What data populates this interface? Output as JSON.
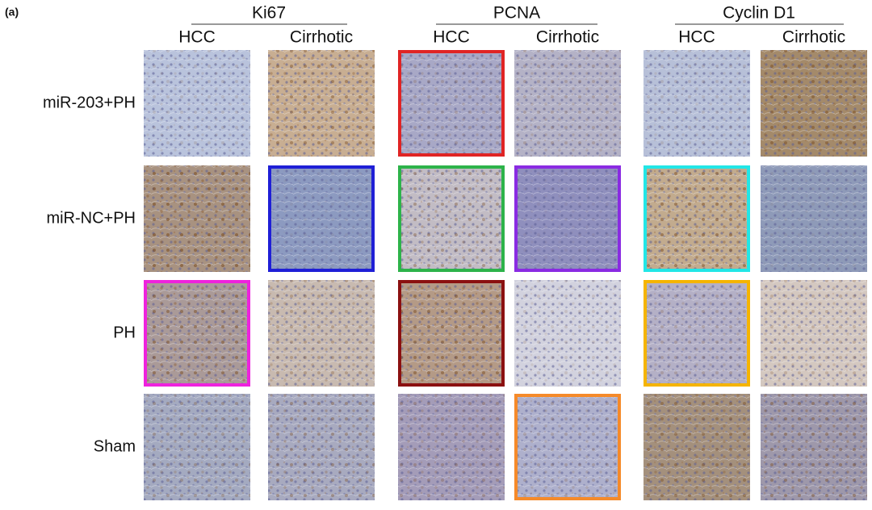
{
  "panel_label": "(a)",
  "groups": [
    {
      "title": "Ki67",
      "columns": [
        "HCC",
        "Cirrhotic"
      ]
    },
    {
      "title": "PCNA",
      "columns": [
        "HCC",
        "Cirrhotic"
      ]
    },
    {
      "title": "Cyclin D1",
      "columns": [
        "HCC",
        "Cirrhotic"
      ]
    }
  ],
  "rows": [
    "miR-203+PH",
    "miR-NC+PH",
    "PH",
    "Sham"
  ]
}
